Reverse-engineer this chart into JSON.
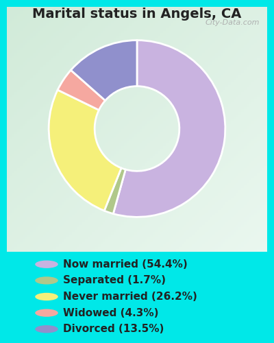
{
  "title": "Marital status in Angels, CA",
  "slices": [
    54.4,
    1.7,
    26.2,
    4.3,
    13.5
  ],
  "labels": [
    "Now married (54.4%)",
    "Separated (1.7%)",
    "Never married (26.2%)",
    "Widowed (4.3%)",
    "Divorced (13.5%)"
  ],
  "colors": [
    "#c9b3e0",
    "#b0c88a",
    "#f5f07a",
    "#f5a8a0",
    "#9090cc"
  ],
  "bg_outer": "#00e8e8",
  "bg_inner_tl": "#d0ead8",
  "bg_inner_br": "#e8f5f0",
  "title_fontsize": 14,
  "legend_fontsize": 11,
  "watermark": "City-Data.com",
  "title_color": "#222222",
  "legend_text_color": "#222222"
}
